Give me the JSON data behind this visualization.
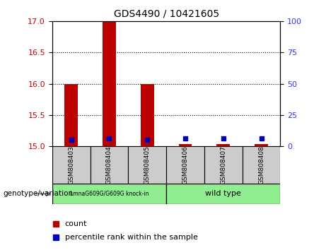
{
  "title": "GDS4490 / 10421605",
  "samples": [
    "GSM808403",
    "GSM808404",
    "GSM808405",
    "GSM808406",
    "GSM808407",
    "GSM808408"
  ],
  "group1_label": "LmnaG609G/G609G knock-in",
  "group2_label": "wild type",
  "sample_bg_color": "#cccccc",
  "group_color": "#90EE90",
  "ylim_left": [
    15,
    17
  ],
  "yticks_left": [
    15,
    15.5,
    16,
    16.5,
    17
  ],
  "ylim_right": [
    0,
    100
  ],
  "yticks_right": [
    0,
    25,
    50,
    75,
    100
  ],
  "red_bar_tops": [
    16.0,
    17.0,
    16.0,
    15.04,
    15.04,
    15.04
  ],
  "blue_dot_y": [
    15.1,
    15.12,
    15.1,
    15.12,
    15.12,
    15.12
  ],
  "bar_bottom": 15,
  "red_color": "#bb0000",
  "blue_color": "#0000bb",
  "ylabel_left_color": "#cc0000",
  "ylabel_right_color": "#3333ff",
  "genotype_label": "genotype/variation",
  "legend_count": "count",
  "legend_percentile": "percentile rank within the sample",
  "grid_yticks": [
    15.5,
    16.0,
    16.5
  ]
}
